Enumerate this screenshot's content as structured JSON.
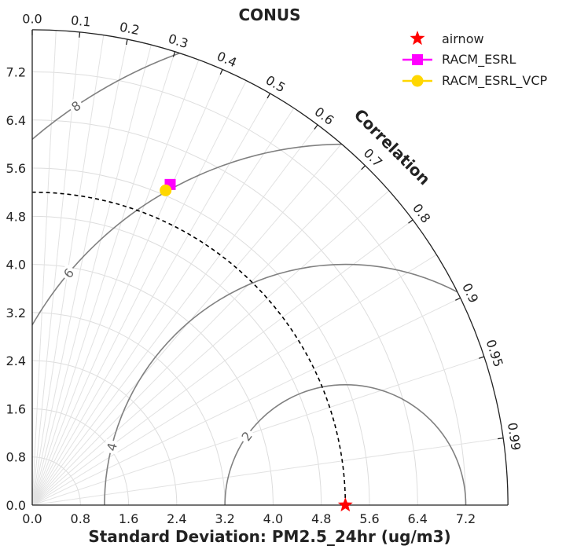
{
  "chart_data": {
    "type": "taylor",
    "title": "CONUS",
    "xlabel": "Standard Deviation: PM2.5_24hr (ug/m3)",
    "corr_label": "Correlation",
    "std_max": 7.9,
    "x_ticks": [
      "0.0",
      "0.8",
      "1.6",
      "2.4",
      "3.2",
      "4.0",
      "4.8",
      "5.6",
      "6.4",
      "7.2"
    ],
    "y_ticks": [
      "0.0",
      "0.8",
      "1.6",
      "2.4",
      "3.2",
      "4.0",
      "4.8",
      "5.6",
      "6.4",
      "7.2"
    ],
    "tick_step": 0.8,
    "corr_ticks": [
      "0.0",
      "0.1",
      "0.2",
      "0.3",
      "0.4",
      "0.5",
      "0.6",
      "0.7",
      "0.8",
      "0.9",
      "0.95",
      "0.99"
    ],
    "ref_std": 5.2,
    "rms_contours": [
      {
        "value": 2,
        "label": "2"
      },
      {
        "value": 4,
        "label": "4"
      },
      {
        "value": 6,
        "label": "6"
      },
      {
        "value": 8,
        "label": "8"
      }
    ],
    "series": [
      {
        "name": "airnow",
        "std": 5.2,
        "corr": 1.0,
        "marker": "star",
        "color": "#ff0000"
      },
      {
        "name": "RACM_ESRL",
        "std": 5.8,
        "corr": 0.395,
        "marker": "square",
        "color": "#ff00ff"
      },
      {
        "name": "RACM_ESRL_VCP",
        "std": 5.68,
        "corr": 0.39,
        "marker": "circle",
        "color": "#ffd700"
      }
    ],
    "legend_position": "top-right",
    "grid": true
  }
}
